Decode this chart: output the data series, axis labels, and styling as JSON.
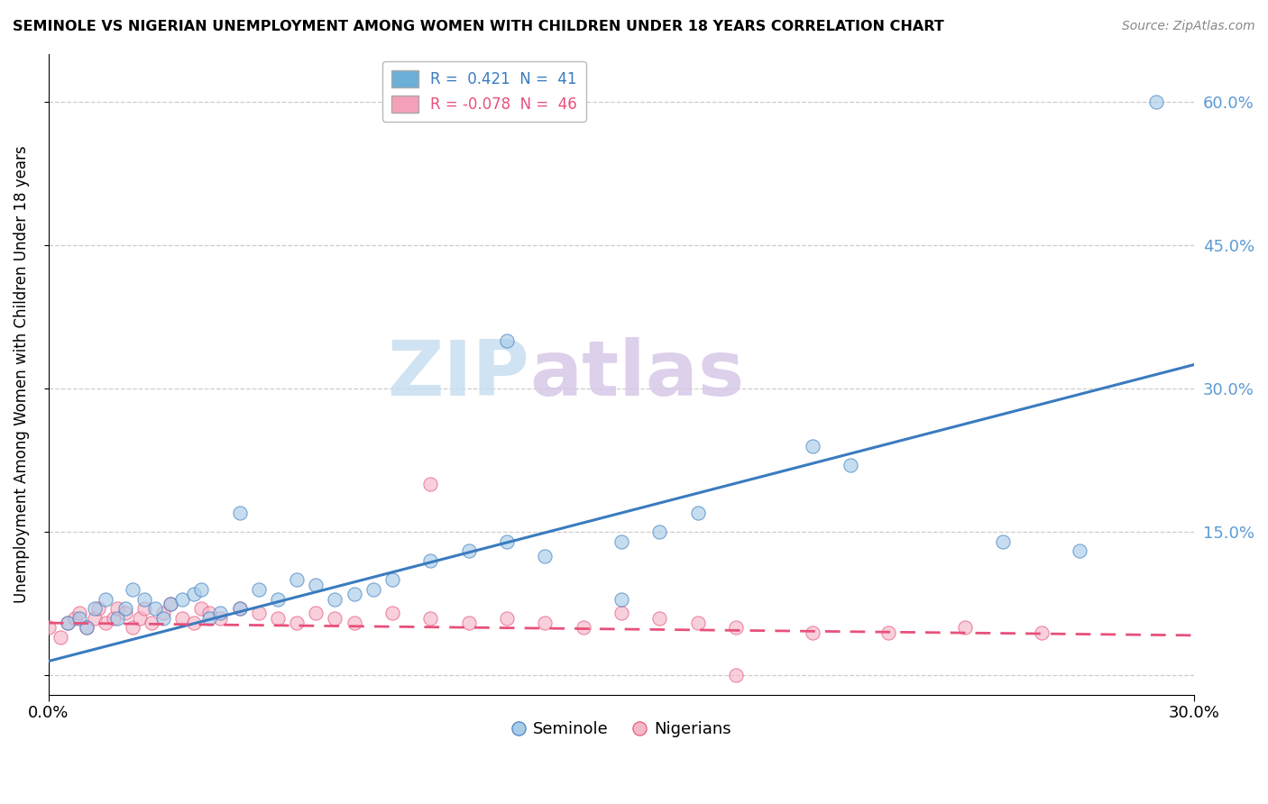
{
  "title": "SEMINOLE VS NIGERIAN UNEMPLOYMENT AMONG WOMEN WITH CHILDREN UNDER 18 YEARS CORRELATION CHART",
  "source": "Source: ZipAtlas.com",
  "ylabel": "Unemployment Among Women with Children Under 18 years",
  "legend_blue_label": "R =  0.421  N =  41",
  "legend_pink_label": "R = -0.078  N =  46",
  "legend_bottom_blue": "Seminole",
  "legend_bottom_pink": "Nigerians",
  "blue_color": "#a8cce8",
  "pink_color": "#f4b8c8",
  "blue_line_color": "#3a7bbf",
  "pink_line_color": "#e8507a",
  "blue_legend_color": "#6baed6",
  "pink_legend_color": "#f4a0b8",
  "right_axis_color": "#5b9bd5",
  "grid_color": "#cccccc",
  "background_color": "#ffffff",
  "watermark_zip_color": "#c8dff0",
  "watermark_atlas_color": "#d8c8e8",
  "xmin": 0.0,
  "xmax": 0.3,
  "ymin": -0.02,
  "ymax": 0.65,
  "yticks": [
    0.0,
    0.15,
    0.3,
    0.45,
    0.6
  ],
  "xticks": [
    0.0,
    0.3
  ],
  "blue_line_x0": 0.0,
  "blue_line_y0": 0.015,
  "blue_line_x1": 0.3,
  "blue_line_y1": 0.325,
  "pink_line_x0": 0.0,
  "pink_line_y0": 0.055,
  "pink_line_x1": 0.3,
  "pink_line_y1": 0.042,
  "seminole_points": [
    [
      0.005,
      0.055
    ],
    [
      0.008,
      0.06
    ],
    [
      0.01,
      0.05
    ],
    [
      0.012,
      0.07
    ],
    [
      0.015,
      0.08
    ],
    [
      0.018,
      0.06
    ],
    [
      0.02,
      0.07
    ],
    [
      0.022,
      0.09
    ],
    [
      0.025,
      0.08
    ],
    [
      0.028,
      0.07
    ],
    [
      0.03,
      0.06
    ],
    [
      0.032,
      0.075
    ],
    [
      0.035,
      0.08
    ],
    [
      0.038,
      0.085
    ],
    [
      0.04,
      0.09
    ],
    [
      0.042,
      0.06
    ],
    [
      0.045,
      0.065
    ],
    [
      0.05,
      0.07
    ],
    [
      0.055,
      0.09
    ],
    [
      0.06,
      0.08
    ],
    [
      0.065,
      0.1
    ],
    [
      0.07,
      0.095
    ],
    [
      0.075,
      0.08
    ],
    [
      0.08,
      0.085
    ],
    [
      0.085,
      0.09
    ],
    [
      0.09,
      0.1
    ],
    [
      0.1,
      0.12
    ],
    [
      0.11,
      0.13
    ],
    [
      0.12,
      0.14
    ],
    [
      0.13,
      0.125
    ],
    [
      0.15,
      0.14
    ],
    [
      0.16,
      0.15
    ],
    [
      0.17,
      0.17
    ],
    [
      0.2,
      0.24
    ],
    [
      0.21,
      0.22
    ],
    [
      0.05,
      0.17
    ],
    [
      0.12,
      0.35
    ],
    [
      0.29,
      0.6
    ],
    [
      0.15,
      0.08
    ],
    [
      0.25,
      0.14
    ],
    [
      0.27,
      0.13
    ]
  ],
  "nigerian_points": [
    [
      0.0,
      0.05
    ],
    [
      0.003,
      0.04
    ],
    [
      0.005,
      0.055
    ],
    [
      0.007,
      0.06
    ],
    [
      0.008,
      0.065
    ],
    [
      0.01,
      0.05
    ],
    [
      0.012,
      0.06
    ],
    [
      0.013,
      0.07
    ],
    [
      0.015,
      0.055
    ],
    [
      0.017,
      0.06
    ],
    [
      0.018,
      0.07
    ],
    [
      0.02,
      0.065
    ],
    [
      0.022,
      0.05
    ],
    [
      0.024,
      0.06
    ],
    [
      0.025,
      0.07
    ],
    [
      0.027,
      0.055
    ],
    [
      0.03,
      0.065
    ],
    [
      0.032,
      0.075
    ],
    [
      0.035,
      0.06
    ],
    [
      0.038,
      0.055
    ],
    [
      0.04,
      0.07
    ],
    [
      0.042,
      0.065
    ],
    [
      0.045,
      0.06
    ],
    [
      0.05,
      0.07
    ],
    [
      0.055,
      0.065
    ],
    [
      0.06,
      0.06
    ],
    [
      0.065,
      0.055
    ],
    [
      0.07,
      0.065
    ],
    [
      0.075,
      0.06
    ],
    [
      0.08,
      0.055
    ],
    [
      0.09,
      0.065
    ],
    [
      0.1,
      0.06
    ],
    [
      0.11,
      0.055
    ],
    [
      0.12,
      0.06
    ],
    [
      0.13,
      0.055
    ],
    [
      0.14,
      0.05
    ],
    [
      0.15,
      0.065
    ],
    [
      0.16,
      0.06
    ],
    [
      0.17,
      0.055
    ],
    [
      0.18,
      0.05
    ],
    [
      0.2,
      0.045
    ],
    [
      0.22,
      0.045
    ],
    [
      0.24,
      0.05
    ],
    [
      0.26,
      0.045
    ],
    [
      0.1,
      0.2
    ],
    [
      0.18,
      0.0
    ]
  ]
}
